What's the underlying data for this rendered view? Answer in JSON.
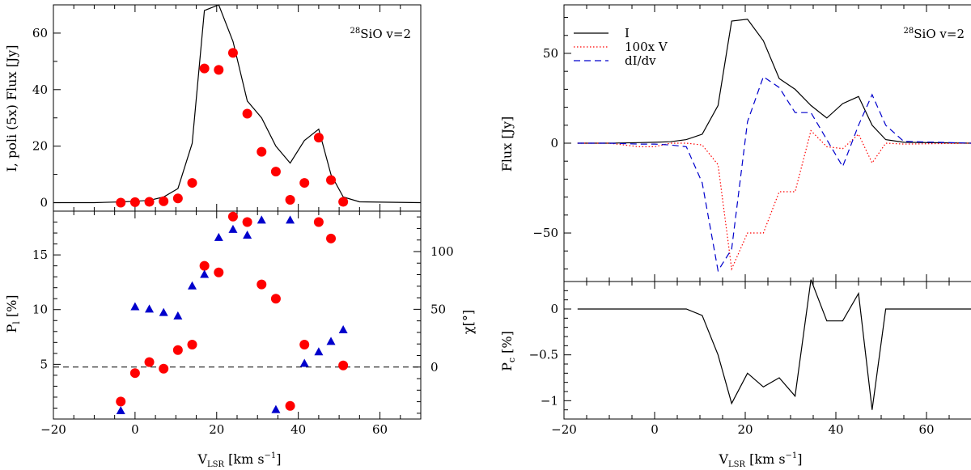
{
  "chart_data": [
    {
      "type": "line+scatter",
      "panel": "left-top",
      "ylabel": "I, poli (5x) Flux [Jy]",
      "annotation": "28SiO v=2",
      "annotation_sup": "28",
      "annotation_rest": "SiO v=2",
      "xlim": [
        -20,
        70
      ],
      "ylim": [
        -3,
        70
      ],
      "yticks": [
        0,
        20,
        40,
        60
      ],
      "series": [
        {
          "kind": "line",
          "color": "#000000",
          "x": [
            -20,
            -10,
            -5,
            -3,
            0,
            3.5,
            7,
            10.5,
            14,
            17,
            20.5,
            24,
            27.5,
            31,
            34.5,
            38,
            41.5,
            45,
            48,
            51,
            55,
            70
          ],
          "y": [
            0,
            0,
            0.2,
            0.3,
            0.5,
            0.8,
            2,
            5,
            21,
            68,
            70,
            57,
            36,
            30,
            20,
            14,
            22,
            26,
            10,
            2,
            0.3,
            0
          ]
        },
        {
          "kind": "scatter",
          "marker": "circle",
          "color": "#ff0000",
          "x": [
            -3.5,
            0,
            3.5,
            7,
            10.5,
            14,
            17,
            20.5,
            24,
            27.5,
            31,
            34.5,
            38,
            41.5,
            45,
            48,
            51
          ],
          "y": [
            0,
            0.2,
            0.3,
            0.5,
            1.5,
            7,
            47.5,
            47,
            53,
            31.5,
            18,
            11,
            1,
            7,
            23,
            8,
            0.3
          ]
        }
      ]
    },
    {
      "type": "scatter",
      "panel": "left-bottom",
      "xlabel": "V",
      "xlabel_sub": "LSR",
      "xlabel_rest": " [km s",
      "xlabel_sup": "−1",
      "xlabel_end": "]",
      "ylabel": "P",
      "ylabel_sub": "l",
      "ylabel_rest": " [%]",
      "y2label": "χ[°]",
      "xlim": [
        -20,
        70
      ],
      "xticks": [
        -20,
        0,
        20,
        40,
        60
      ],
      "ylim": [
        0,
        19
      ],
      "yticks": [
        5,
        10,
        15
      ],
      "y2lim": [
        -45,
        135
      ],
      "y2ticks": [
        0,
        50,
        100
      ],
      "hline_y2": 0,
      "series": [
        {
          "kind": "scatter",
          "marker": "circle",
          "color": "#ff0000",
          "axis": "left",
          "x": [
            -3.5,
            0,
            3.5,
            7,
            10.5,
            14,
            17,
            20.5,
            24,
            27.5,
            31,
            34.5,
            38,
            41.5,
            45,
            48,
            51
          ],
          "y": [
            1.6,
            4.2,
            5.2,
            4.6,
            6.3,
            6.8,
            14,
            13.4,
            18.5,
            18,
            12.3,
            11,
            1.2,
            6.8,
            18,
            16.5,
            4.9
          ]
        },
        {
          "kind": "scatter",
          "marker": "triangle",
          "color": "#0000cc",
          "axis": "right",
          "x": [
            -3.5,
            0,
            3.5,
            7,
            10.5,
            14,
            17,
            20.5,
            24,
            27.5,
            31,
            34.5,
            38,
            41.5,
            45,
            48,
            51
          ],
          "y": [
            -38,
            52,
            50,
            47,
            44,
            70,
            80,
            112,
            119,
            114,
            127,
            -37,
            127,
            3,
            13,
            22,
            32
          ]
        }
      ]
    },
    {
      "type": "line",
      "panel": "right-top",
      "ylabel": "Flux [Jy]",
      "annotation": "28SiO v=2",
      "annotation_sup": "28",
      "annotation_rest": "SiO v=2",
      "legend": [
        "I",
        "100x V",
        "dI/dv"
      ],
      "legend_position": "top-left",
      "xlim": [
        -20,
        70
      ],
      "ylim": [
        -77,
        77
      ],
      "yticks": [
        -50,
        0,
        50
      ],
      "series": [
        {
          "name": "I",
          "kind": "line",
          "color": "#000000",
          "style": "solid",
          "x": [
            -17,
            -10,
            -3.5,
            0,
            3.5,
            7,
            10.5,
            14,
            17,
            20.5,
            24,
            27.5,
            31,
            34.5,
            38,
            41.5,
            45,
            48,
            51,
            55,
            70
          ],
          "y": [
            0,
            0,
            0.3,
            0.5,
            0.8,
            2,
            5,
            21,
            68,
            69,
            57,
            36,
            30,
            21,
            14,
            22,
            26,
            10,
            2,
            0.5,
            0
          ]
        },
        {
          "name": "100x V",
          "kind": "line",
          "color": "#ff0000",
          "style": "dotted",
          "x": [
            -17,
            -10,
            -3.5,
            0,
            3.5,
            7,
            10.5,
            14,
            17,
            20.5,
            24,
            27.5,
            31,
            34.5,
            38,
            41.5,
            45,
            48,
            51,
            55,
            70
          ],
          "y": [
            0,
            0,
            -2,
            -2,
            0,
            0,
            -1,
            -12,
            -70,
            -50,
            -50,
            -27,
            -27,
            7,
            -2,
            -3,
            5,
            -11,
            0,
            -0.5,
            0
          ]
        },
        {
          "name": "dI/dv",
          "kind": "line",
          "color": "#0000cc",
          "style": "dashed",
          "x": [
            -17,
            -10,
            -3.5,
            0,
            3.5,
            7,
            10.5,
            14,
            17,
            20.5,
            24,
            27.5,
            31,
            34.5,
            38,
            41.5,
            45,
            48,
            51,
            55,
            70
          ],
          "y": [
            0,
            0,
            -0.5,
            -0.5,
            -1,
            -2,
            -22,
            -71,
            -59,
            12,
            37,
            31,
            17,
            17,
            2,
            -13,
            10,
            27,
            10,
            1,
            0
          ]
        }
      ]
    },
    {
      "type": "line",
      "panel": "right-bottom",
      "xlabel": "V",
      "xlabel_sub": "LSR",
      "xlabel_rest": " [km s",
      "xlabel_sup": "−1",
      "xlabel_end": "]",
      "ylabel": "P",
      "ylabel_sub": "c",
      "ylabel_rest": " [%]",
      "xlim": [
        -20,
        70
      ],
      "xticks": [
        -20,
        0,
        20,
        40,
        60
      ],
      "ylim": [
        -1.2,
        0.3
      ],
      "yticks": [
        0,
        -0.5,
        -1
      ],
      "ytick_labels": [
        "0",
        "−0.5",
        "−1"
      ],
      "series": [
        {
          "kind": "line",
          "color": "#000000",
          "x": [
            -17,
            7,
            10.5,
            14,
            17,
            20.5,
            24,
            27.5,
            31,
            34.5,
            38,
            41.5,
            45,
            48,
            51,
            70
          ],
          "y": [
            0,
            0,
            -0.07,
            -0.5,
            -1.03,
            -0.7,
            -0.85,
            -0.75,
            -0.95,
            0.32,
            -0.13,
            -0.13,
            0.17,
            -1.1,
            0,
            0
          ]
        }
      ]
    }
  ]
}
